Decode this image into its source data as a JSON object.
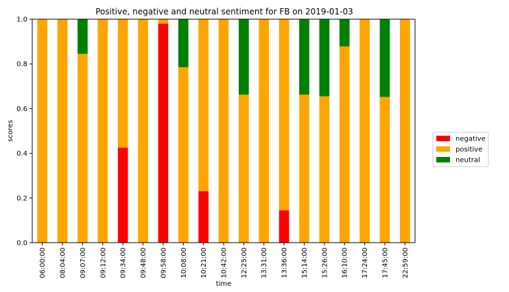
{
  "chart_data": {
    "type": "bar",
    "stacked": true,
    "title": "Positive, negative and neutral sentiment for FB on 2019-01-03",
    "xlabel": "time",
    "ylabel": "scores",
    "ylim": [
      0,
      1.0
    ],
    "yticks": [
      0.0,
      0.2,
      0.4,
      0.6,
      0.8,
      1.0
    ],
    "ytick_labels": [
      "0.0",
      "0.2",
      "0.4",
      "0.6",
      "0.8",
      "1.0"
    ],
    "legend_position": "right",
    "categories": [
      "06:00:00",
      "08:04:00",
      "09:07:00",
      "09:12:00",
      "09:34:00",
      "09:48:00",
      "09:58:00",
      "10:08:00",
      "10:21:00",
      "10:42:00",
      "12:25:00",
      "13:31:00",
      "13:36:00",
      "15:14:00",
      "15:26:00",
      "16:10:00",
      "17:24:00",
      "17:45:00",
      "22:59:00"
    ],
    "series": [
      {
        "name": "negative",
        "color": "#ff0000",
        "values": [
          0,
          0,
          0,
          0,
          0.425,
          0,
          0.98,
          0,
          0.23,
          0,
          0,
          0,
          0.145,
          0,
          0,
          0,
          0,
          0,
          0
        ]
      },
      {
        "name": "positive",
        "color": "#ffa500",
        "values": [
          1.0,
          1.0,
          0.845,
          1.0,
          0.575,
          1.0,
          0.02,
          0.785,
          0.77,
          1.0,
          0.662,
          1.0,
          0.855,
          0.662,
          0.655,
          0.878,
          1.0,
          0.652,
          1.0
        ]
      },
      {
        "name": "neutral",
        "color": "#008000",
        "values": [
          0,
          0,
          0.155,
          0,
          0,
          0,
          0,
          0.215,
          0,
          0,
          0.338,
          0,
          0,
          0.338,
          0.345,
          0.122,
          0,
          0.348,
          0
        ]
      }
    ]
  }
}
